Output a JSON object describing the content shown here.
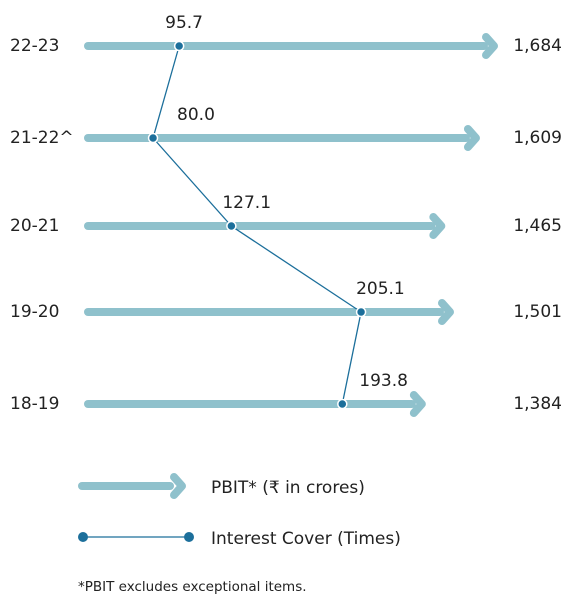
{
  "chart_data": {
    "type": "bar-line",
    "categories": [
      "22-23",
      "21-22^",
      "20-21",
      "19-20",
      "18-19"
    ],
    "series": [
      {
        "name": "PBIT* (₹ in crores)",
        "color": "#8fc1cc",
        "values": [
          1684,
          1609,
          1465,
          1501,
          1384
        ],
        "value_labels": [
          "1,684",
          "1,609",
          "1,465",
          "1,501",
          "1,384"
        ]
      },
      {
        "name": "Interest Cover (Times)",
        "color": "#1c6f9b",
        "values": [
          95.7,
          80.0,
          127.1,
          205.1,
          193.8
        ],
        "value_labels": [
          "95.7",
          "80.0",
          "127.1",
          "205.1",
          "193.8"
        ]
      }
    ],
    "footnote": "*PBIT excludes exceptional items."
  }
}
